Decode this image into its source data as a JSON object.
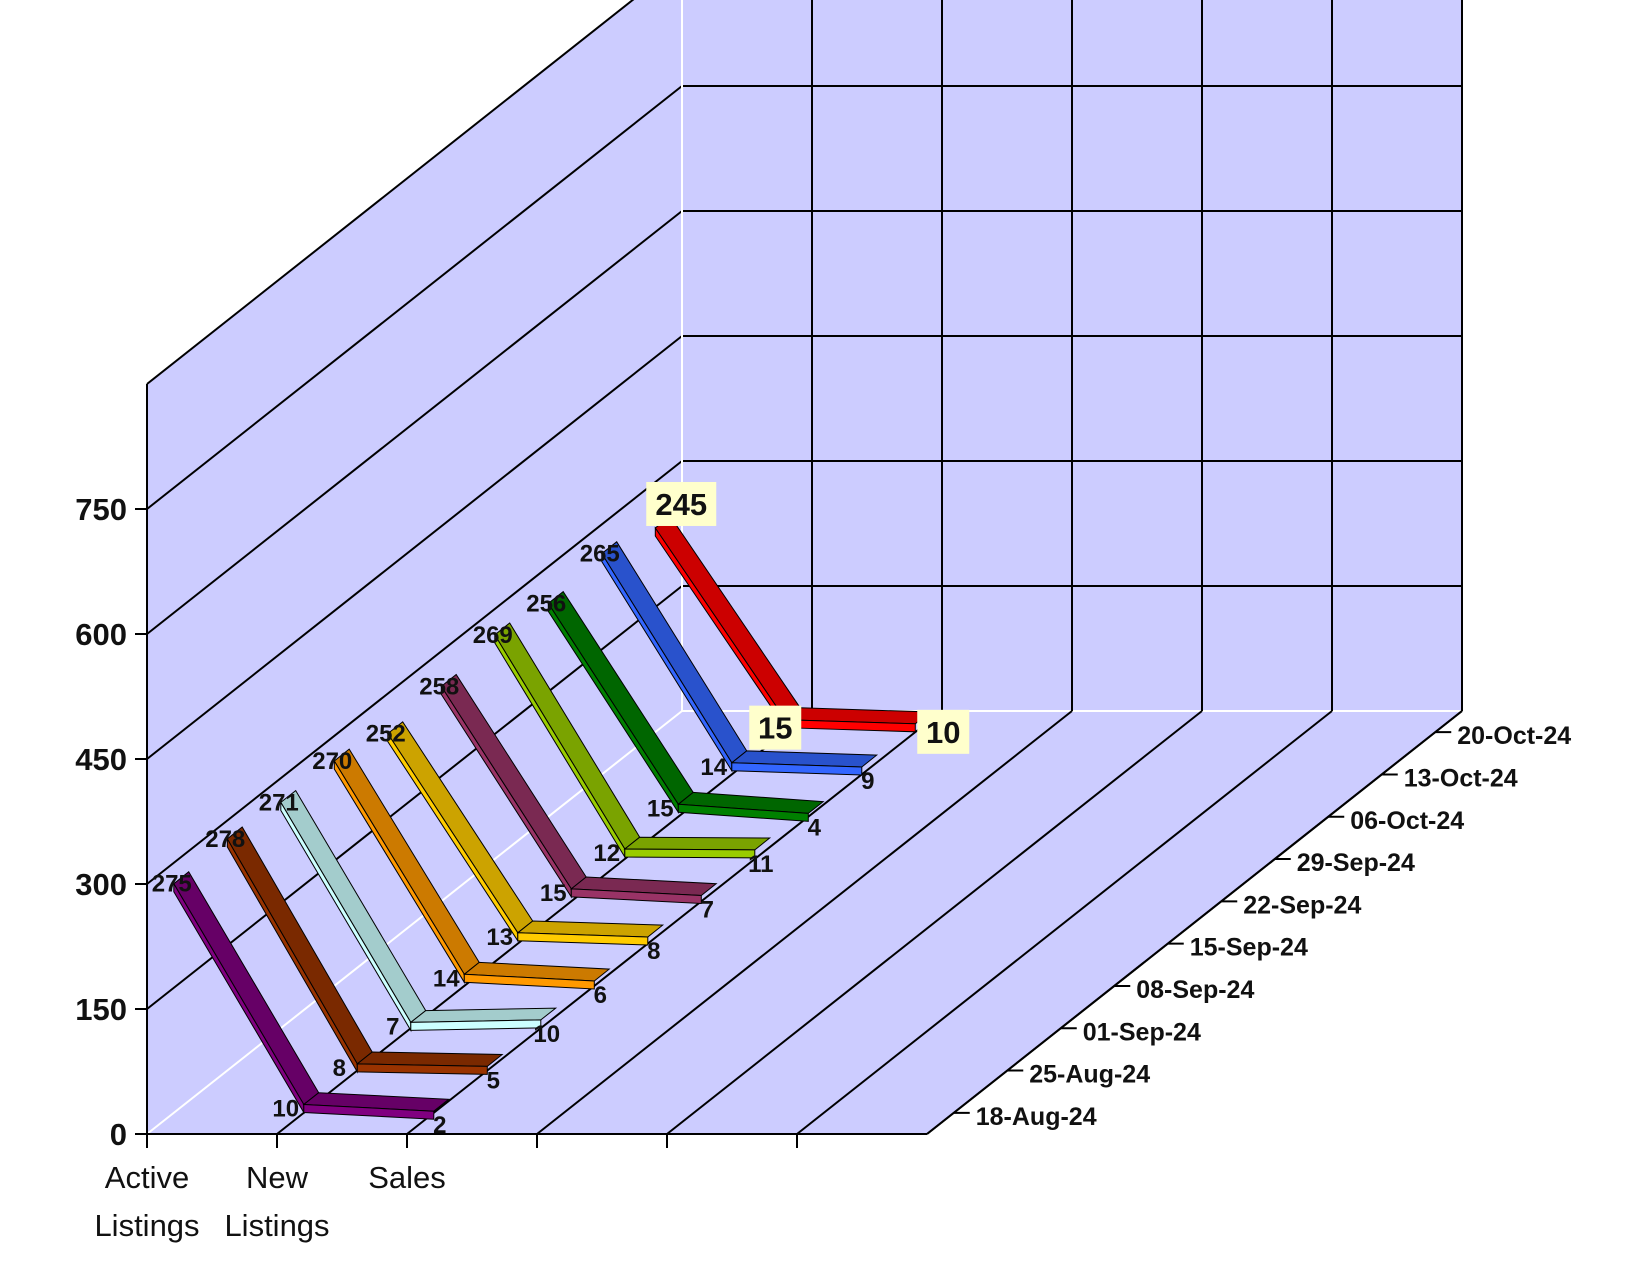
{
  "chart_data": {
    "type": "line",
    "subtype": "3d-line",
    "title": "",
    "categories": [
      "Active Listings",
      "New Listings",
      "Sales"
    ],
    "category_lines": [
      [
        "Active",
        "Listings"
      ],
      [
        "New",
        "Listings"
      ],
      [
        "Sales"
      ]
    ],
    "ylim": [
      0,
      900
    ],
    "yticks": [
      0,
      150,
      300,
      450,
      600,
      750
    ],
    "grid": true,
    "series": [
      {
        "name": "18-Aug-24",
        "color": "#800080",
        "values": [
          275,
          10,
          2
        ]
      },
      {
        "name": "25-Aug-24",
        "color": "#993300",
        "values": [
          278,
          8,
          5
        ]
      },
      {
        "name": "01-Sep-24",
        "color": "#ccffff",
        "values": [
          271,
          7,
          10
        ]
      },
      {
        "name": "08-Sep-24",
        "color": "#ff9900",
        "values": [
          270,
          14,
          6
        ]
      },
      {
        "name": "15-Sep-24",
        "color": "#ffcc00",
        "values": [
          252,
          13,
          8
        ]
      },
      {
        "name": "22-Sep-24",
        "color": "#993366",
        "values": [
          258,
          15,
          7
        ]
      },
      {
        "name": "29-Sep-24",
        "color": "#99cc00",
        "values": [
          269,
          12,
          11
        ]
      },
      {
        "name": "06-Oct-24",
        "color": "#008000",
        "values": [
          256,
          15,
          4
        ]
      },
      {
        "name": "13-Oct-24",
        "color": "#3366ff",
        "values": [
          265,
          14,
          9
        ]
      },
      {
        "name": "20-Oct-24",
        "color": "#ff0000",
        "values": [
          245,
          15,
          10
        ],
        "highlight": true
      }
    ],
    "colors": {
      "wall": "#ccccff",
      "grid": "#000000",
      "label_highlight_bg": "#ffffcc"
    }
  }
}
